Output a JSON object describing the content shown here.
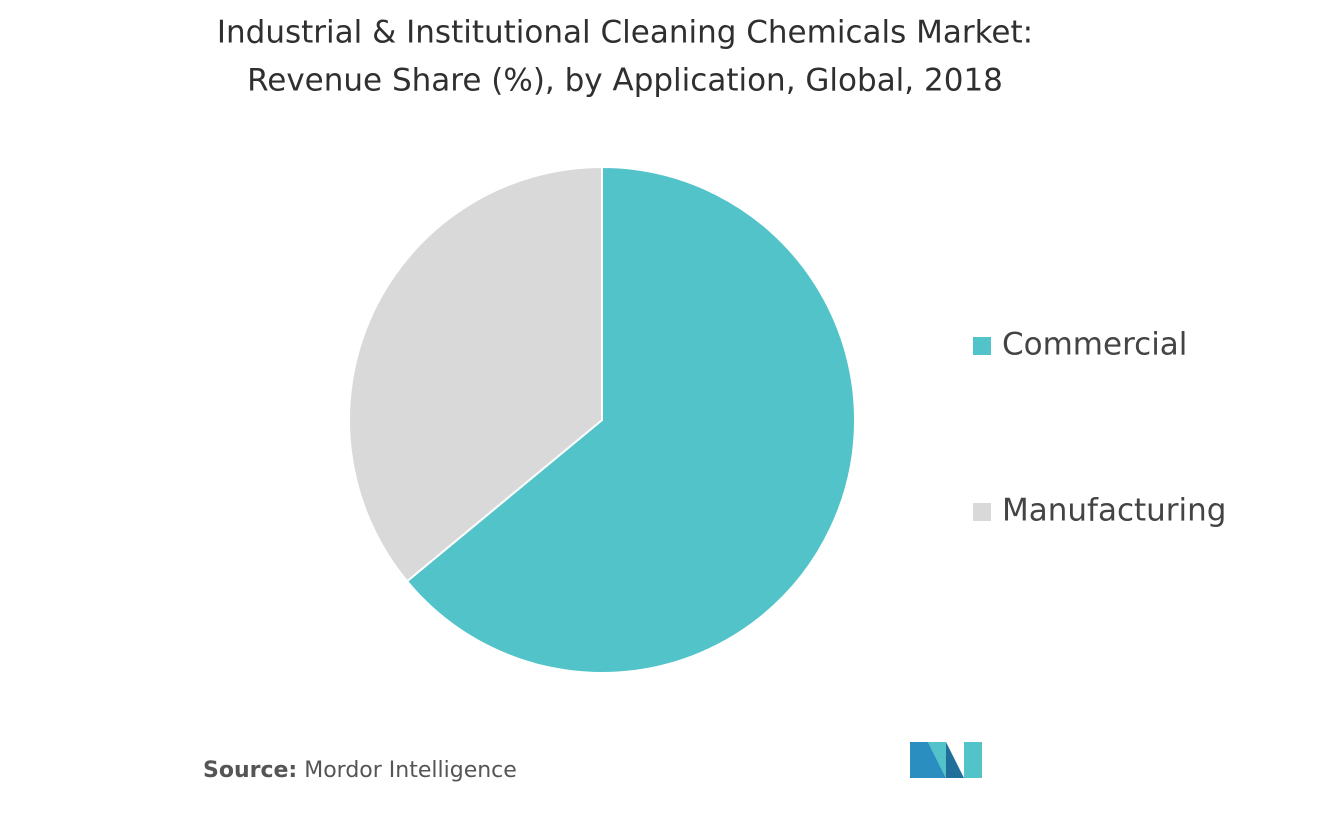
{
  "chart_data": {
    "type": "pie",
    "title": [
      "Industrial & Institutional Cleaning Chemicals Market:",
      "Revenue Share (%), by Application, Global, 2018"
    ],
    "categories": [
      "Commercial",
      "Manufacturing"
    ],
    "values": [
      64,
      36
    ],
    "colors": [
      "#52c3c9",
      "#d9d9d9"
    ],
    "legend": "right",
    "source_label": "Source:",
    "source": "Mordor Intelligence"
  }
}
